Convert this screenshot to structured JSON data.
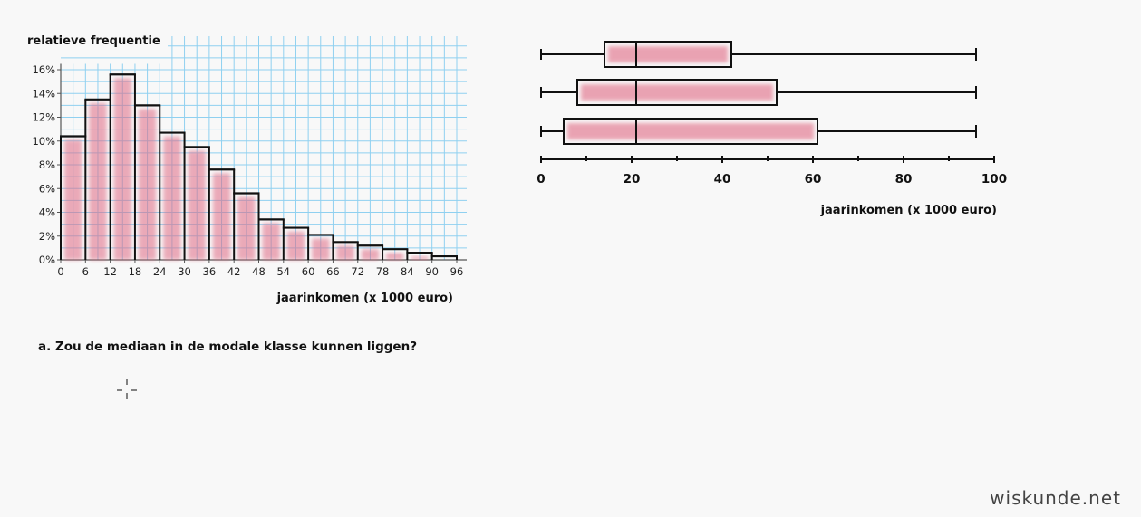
{
  "colors": {
    "grid": "#8fd0f0",
    "highlight": "#e06a84",
    "ink": "#111111"
  },
  "chart_data": [
    {
      "type": "bar",
      "title": "",
      "ylabel": "relatieve frequentie",
      "xlabel": "jaarinkomen (x 1000 euro)",
      "x_ticks": [
        "0",
        "6",
        "12",
        "18",
        "24",
        "30",
        "36",
        "42",
        "48",
        "54",
        "60",
        "66",
        "72",
        "78",
        "84",
        "90",
        "96"
      ],
      "y_ticks": [
        "0%",
        "2%",
        "4%",
        "6%",
        "8%",
        "10%",
        "12%",
        "14%",
        "16%"
      ],
      "ylim": [
        0,
        16.5
      ],
      "xlim": [
        0,
        96
      ],
      "bin_width": 6,
      "grid": true,
      "categories": [
        "0-6",
        "6-12",
        "12-18",
        "18-24",
        "24-30",
        "30-36",
        "36-42",
        "42-48",
        "48-54",
        "54-60",
        "60-66",
        "66-72",
        "72-78",
        "78-84",
        "84-90",
        "90-96"
      ],
      "values": [
        10.4,
        13.5,
        15.6,
        13.0,
        10.7,
        9.5,
        7.6,
        5.6,
        3.4,
        2.7,
        2.1,
        1.5,
        1.2,
        0.9,
        0.6,
        0.3
      ]
    },
    {
      "type": "boxplot",
      "xlabel": "jaarinkomen (x 1000 euro)",
      "x_ticks": [
        "0",
        "20",
        "40",
        "60",
        "80",
        "100"
      ],
      "xlim": [
        0,
        100
      ],
      "boxes": [
        {
          "min": 0,
          "q1": 14,
          "median": 21,
          "q3": 42,
          "max": 96
        },
        {
          "min": 0,
          "q1": 8,
          "median": 21,
          "q3": 52,
          "max": 96
        },
        {
          "min": 0,
          "q1": 5,
          "median": 21,
          "q3": 61,
          "max": 96
        }
      ]
    }
  ],
  "question": "a. Zou de mediaan in de modale klasse kunnen liggen?",
  "watermark": "wiskunde.net",
  "icons": {
    "cursor": "crosshair-cursor-icon"
  }
}
